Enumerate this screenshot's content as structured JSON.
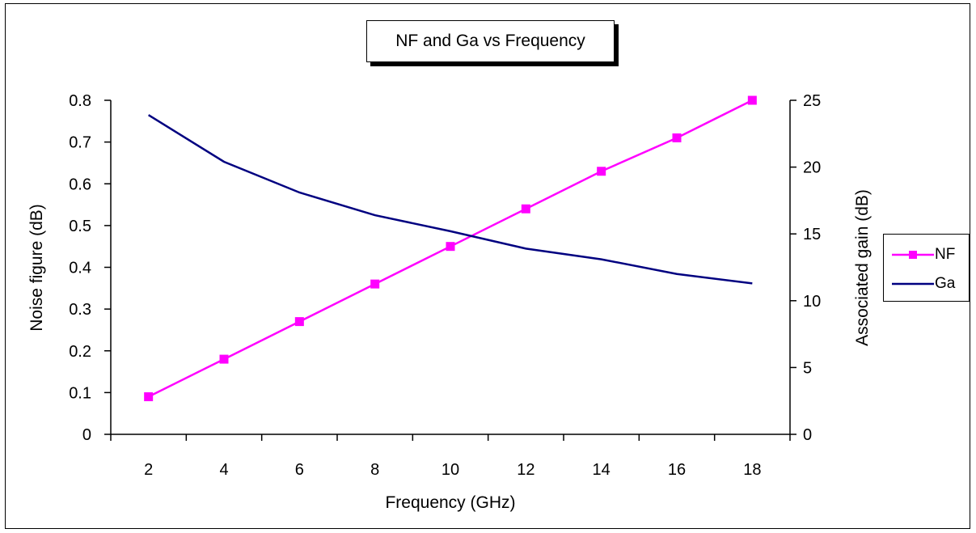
{
  "chart_data": {
    "type": "line",
    "title": "NF and Ga vs Frequency",
    "xlabel": "Frequency (GHz)",
    "ylabel_left": "Noise figure (dB)",
    "ylabel_right": "Associated gain (dB)",
    "categories": [
      "2",
      "4",
      "6",
      "8",
      "10",
      "12",
      "14",
      "16",
      "18"
    ],
    "x": [
      2,
      4,
      6,
      8,
      10,
      12,
      14,
      16,
      18
    ],
    "ylim_left": [
      0,
      0.8
    ],
    "ylim_right": [
      0,
      25
    ],
    "yticks_left": [
      "0",
      "0.1",
      "0.2",
      "0.3",
      "0.4",
      "0.5",
      "0.6",
      "0.7",
      "0.8"
    ],
    "yticks_right": [
      "0",
      "5",
      "10",
      "15",
      "20",
      "25"
    ],
    "series": [
      {
        "name": "NF",
        "axis": "left",
        "color": "#ff00ff",
        "marker": "square",
        "values": [
          0.09,
          0.18,
          0.27,
          0.36,
          0.45,
          0.54,
          0.63,
          0.71,
          0.8
        ]
      },
      {
        "name": "Ga",
        "axis": "right",
        "color": "#000080",
        "marker": "none",
        "values": [
          23.9,
          20.4,
          18.1,
          16.4,
          15.2,
          13.9,
          13.1,
          12.0,
          11.3
        ]
      }
    ],
    "grid": false,
    "legend": "right"
  }
}
